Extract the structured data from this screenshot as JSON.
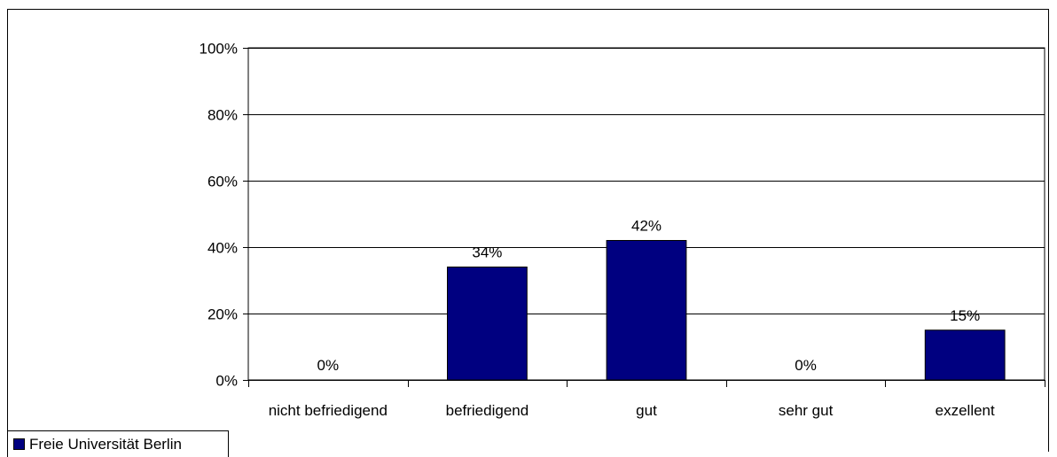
{
  "chart_data": {
    "type": "bar",
    "categories": [
      "nicht befriedigend",
      "befriedigend",
      "gut",
      "sehr gut",
      "exzellent"
    ],
    "series": [
      {
        "name": "Freie Universität Berlin",
        "values": [
          0,
          34,
          42,
          0,
          15
        ],
        "labels": [
          "0%",
          "34%",
          "42%",
          "0%",
          "15%"
        ]
      }
    ],
    "ylim": [
      0,
      100
    ],
    "yticks": [
      "0%",
      "20%",
      "40%",
      "60%",
      "80%",
      "100%"
    ],
    "ytick_values": [
      0,
      20,
      40,
      60,
      80,
      100
    ],
    "grid": true,
    "legend_position": "bottom-left",
    "colors": {
      "bar": "#000080",
      "grid": "#000000",
      "background": "#ffffff"
    }
  }
}
